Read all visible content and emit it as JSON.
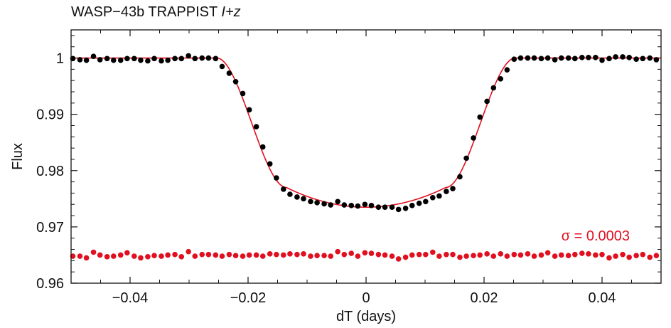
{
  "chart_data": {
    "type": "scatter",
    "title": "WASP−43b TRAPPIST ",
    "title_band": "I+z",
    "xlabel": "dT (days)",
    "ylabel": "Flux",
    "xlim": [
      -0.05,
      0.05
    ],
    "ylim": [
      0.96,
      1.005
    ],
    "x_ticks": [
      -0.04,
      -0.02,
      0,
      0.02,
      0.04
    ],
    "x_tick_labels": [
      "−0.04",
      "−0.02",
      "0",
      "0.02",
      "0.04"
    ],
    "y_ticks": [
      0.96,
      0.97,
      0.98,
      0.99,
      1.0
    ],
    "y_tick_labels": [
      "0.96",
      "0.97",
      "0.98",
      "0.99",
      "1"
    ],
    "annotation": "σ = 0.0003",
    "colors": {
      "data": "#000000",
      "model": "#e01020",
      "residuals": "#e01020"
    },
    "series": [
      {
        "type": "scatter",
        "points": [
          [
            -0.0497,
            0.9999
          ],
          [
            -0.0485,
            0.9997
          ],
          [
            -0.0474,
            0.9996
          ],
          [
            -0.0462,
            1.0003
          ],
          [
            -0.0451,
            0.9997
          ],
          [
            -0.0439,
            0.9999
          ],
          [
            -0.0428,
            0.9996
          ],
          [
            -0.0416,
            0.9996
          ],
          [
            -0.0405,
            0.9999
          ],
          [
            -0.0393,
            0.9999
          ],
          [
            -0.0382,
            0.9996
          ],
          [
            -0.037,
            0.9995
          ],
          [
            -0.0359,
            0.9999
          ],
          [
            -0.0347,
            0.9995
          ],
          [
            -0.0336,
            0.9996
          ],
          [
            -0.0324,
            0.9999
          ],
          [
            -0.0313,
            0.9999
          ],
          [
            -0.0301,
            1.0004
          ],
          [
            -0.029,
            0.9999
          ],
          [
            -0.0278,
            1.0
          ],
          [
            -0.0267,
            1.0
          ],
          [
            -0.0255,
            0.9999
          ],
          [
            -0.0244,
            0.9985
          ],
          [
            -0.0232,
            0.9973
          ],
          [
            -0.0221,
            0.9958
          ],
          [
            -0.0209,
            0.9937
          ],
          [
            -0.0198,
            0.9908
          ],
          [
            -0.0186,
            0.9878
          ],
          [
            -0.0175,
            0.9842
          ],
          [
            -0.0163,
            0.9812
          ],
          [
            -0.0152,
            0.9787
          ],
          [
            -0.014,
            0.9767
          ],
          [
            -0.0129,
            0.9758
          ],
          [
            -0.0117,
            0.9753
          ],
          [
            -0.0106,
            0.975
          ],
          [
            -0.0094,
            0.9745
          ],
          [
            -0.0083,
            0.9743
          ],
          [
            -0.0071,
            0.9741
          ],
          [
            -0.006,
            0.9739
          ],
          [
            -0.0048,
            0.9745
          ],
          [
            -0.0037,
            0.9739
          ],
          [
            -0.0025,
            0.9738
          ],
          [
            -0.0014,
            0.9737
          ],
          [
            -0.0002,
            0.974
          ],
          [
            0.0009,
            0.9738
          ],
          [
            0.0021,
            0.9735
          ],
          [
            0.0032,
            0.9735
          ],
          [
            0.0044,
            0.9735
          ],
          [
            0.0055,
            0.9731
          ],
          [
            0.0067,
            0.9733
          ],
          [
            0.0078,
            0.9738
          ],
          [
            0.009,
            0.9742
          ],
          [
            0.0101,
            0.9745
          ],
          [
            0.0113,
            0.9752
          ],
          [
            0.0124,
            0.9755
          ],
          [
            0.0136,
            0.9763
          ],
          [
            0.0147,
            0.9768
          ],
          [
            0.0159,
            0.9789
          ],
          [
            0.017,
            0.9822
          ],
          [
            0.0182,
            0.9858
          ],
          [
            0.0193,
            0.9895
          ],
          [
            0.0205,
            0.9923
          ],
          [
            0.0216,
            0.9947
          ],
          [
            0.0228,
            0.9963
          ],
          [
            0.0239,
            0.9979
          ],
          [
            0.0251,
            0.9998
          ],
          [
            0.0262,
            1.0
          ],
          [
            0.0274,
            1.0
          ],
          [
            0.0285,
            1.0
          ],
          [
            0.0297,
            0.9999
          ],
          [
            0.0308,
            1.0
          ],
          [
            0.032,
            0.9997
          ],
          [
            0.0331,
            1.0
          ],
          [
            0.0343,
            1.0
          ],
          [
            0.0354,
            0.9999
          ],
          [
            0.0366,
            1.0001
          ],
          [
            0.0377,
            1.0001
          ],
          [
            0.0389,
            1.0001
          ],
          [
            0.04,
            0.9996
          ],
          [
            0.0412,
            0.9999
          ],
          [
            0.0423,
            1.0002
          ],
          [
            0.0435,
            1.0002
          ],
          [
            0.0446,
            1.0001
          ],
          [
            0.0458,
            0.9998
          ],
          [
            0.0469,
            0.9999
          ],
          [
            0.0481,
            1.0
          ],
          [
            0.0492,
            0.9997
          ]
        ]
      },
      {
        "type": "line",
        "model": {
          "depth": 0.0265,
          "t_start": 0.0253,
          "t_full": 0.0135,
          "curvature": 0.0035
        }
      },
      {
        "type": "scatter",
        "points": [
          [
            -0.0497,
            0.9648
          ],
          [
            -0.0485,
            0.9648
          ],
          [
            -0.0474,
            0.9645
          ],
          [
            -0.0462,
            0.9655
          ],
          [
            -0.0451,
            0.965
          ],
          [
            -0.0439,
            0.9647
          ],
          [
            -0.0428,
            0.9648
          ],
          [
            -0.0416,
            0.965
          ],
          [
            -0.0405,
            0.9654
          ],
          [
            -0.0393,
            0.9648
          ],
          [
            -0.0382,
            0.9645
          ],
          [
            -0.037,
            0.9647
          ],
          [
            -0.0359,
            0.9649
          ],
          [
            -0.0347,
            0.9648
          ],
          [
            -0.0336,
            0.965
          ],
          [
            -0.0324,
            0.9651
          ],
          [
            -0.0313,
            0.9647
          ],
          [
            -0.0301,
            0.9656
          ],
          [
            -0.029,
            0.9648
          ],
          [
            -0.0278,
            0.9651
          ],
          [
            -0.0267,
            0.9651
          ],
          [
            -0.0255,
            0.965
          ],
          [
            -0.0244,
            0.9648
          ],
          [
            -0.0232,
            0.9651
          ],
          [
            -0.0221,
            0.9649
          ],
          [
            -0.0209,
            0.9648
          ],
          [
            -0.0198,
            0.965
          ],
          [
            -0.0186,
            0.965
          ],
          [
            -0.0175,
            0.9648
          ],
          [
            -0.0163,
            0.9652
          ],
          [
            -0.0152,
            0.9651
          ],
          [
            -0.014,
            0.965
          ],
          [
            -0.0129,
            0.9652
          ],
          [
            -0.0117,
            0.9651
          ],
          [
            -0.0106,
            0.9652
          ],
          [
            -0.0094,
            0.9648
          ],
          [
            -0.0083,
            0.9649
          ],
          [
            -0.0071,
            0.9649
          ],
          [
            -0.006,
            0.9648
          ],
          [
            -0.0048,
            0.9656
          ],
          [
            -0.0037,
            0.9651
          ],
          [
            -0.0025,
            0.9653
          ],
          [
            -0.0014,
            0.9648
          ],
          [
            -0.0002,
            0.9654
          ],
          [
            0.0009,
            0.9653
          ],
          [
            0.0021,
            0.9651
          ],
          [
            0.0032,
            0.965
          ],
          [
            0.0044,
            0.9648
          ],
          [
            0.0055,
            0.9643
          ],
          [
            0.0067,
            0.9646
          ],
          [
            0.0078,
            0.965
          ],
          [
            0.009,
            0.9651
          ],
          [
            0.0101,
            0.9651
          ],
          [
            0.0113,
            0.9655
          ],
          [
            0.0124,
            0.9648
          ],
          [
            0.0136,
            0.9651
          ],
          [
            0.0147,
            0.9651
          ],
          [
            0.0159,
            0.9646
          ],
          [
            0.017,
            0.9648
          ],
          [
            0.0182,
            0.9649
          ],
          [
            0.0193,
            0.965
          ],
          [
            0.0205,
            0.9652
          ],
          [
            0.0216,
            0.9648
          ],
          [
            0.0228,
            0.9652
          ],
          [
            0.0239,
            0.9648
          ],
          [
            0.0251,
            0.9651
          ],
          [
            0.0262,
            0.965
          ],
          [
            0.0274,
            0.9652
          ],
          [
            0.0285,
            0.9648
          ],
          [
            0.0297,
            0.965
          ],
          [
            0.0308,
            0.9654
          ],
          [
            0.032,
            0.9648
          ],
          [
            0.0331,
            0.965
          ],
          [
            0.0343,
            0.9649
          ],
          [
            0.0354,
            0.9651
          ],
          [
            0.0366,
            0.9653
          ],
          [
            0.0377,
            0.9652
          ],
          [
            0.0389,
            0.965
          ],
          [
            0.04,
            0.9651
          ],
          [
            0.0412,
            0.9645
          ],
          [
            0.0423,
            0.9648
          ],
          [
            0.0435,
            0.9651
          ],
          [
            0.0446,
            0.9646
          ],
          [
            0.0458,
            0.9649
          ],
          [
            0.0469,
            0.9651
          ],
          [
            0.0481,
            0.9646
          ],
          [
            0.0492,
            0.9649
          ]
        ]
      }
    ]
  }
}
